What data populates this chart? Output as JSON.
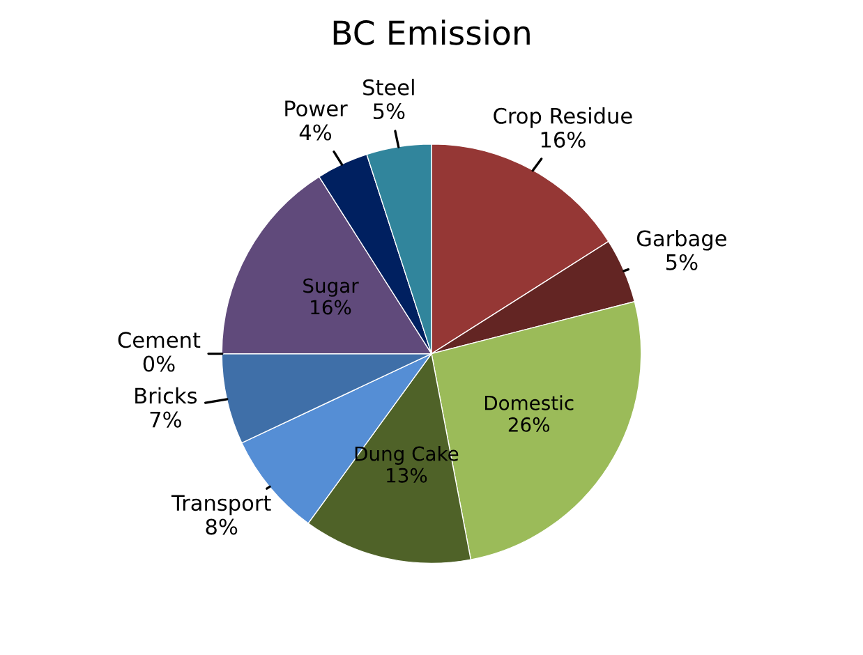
{
  "chart_data": {
    "type": "pie",
    "title": "BC Emission",
    "categories": [
      "Crop Residue",
      "Garbage",
      "Domestic",
      "Dung Cake",
      "Transport",
      "Bricks",
      "Cement",
      "Sugar",
      "Power",
      "Steel"
    ],
    "values": [
      16,
      5,
      26,
      13,
      8,
      7,
      0,
      16,
      4,
      5
    ],
    "colors": [
      "#953735",
      "#632523",
      "#9bbb59",
      "#4f6228",
      "#558ed5",
      "#3f6fa8",
      "#c0504d",
      "#604a7b",
      "#002060",
      "#31859c"
    ],
    "value_labels": [
      "16%",
      "5%",
      "26%",
      "13%",
      "8%",
      "7%",
      "0%",
      "16%",
      "4%",
      "5%"
    ]
  }
}
